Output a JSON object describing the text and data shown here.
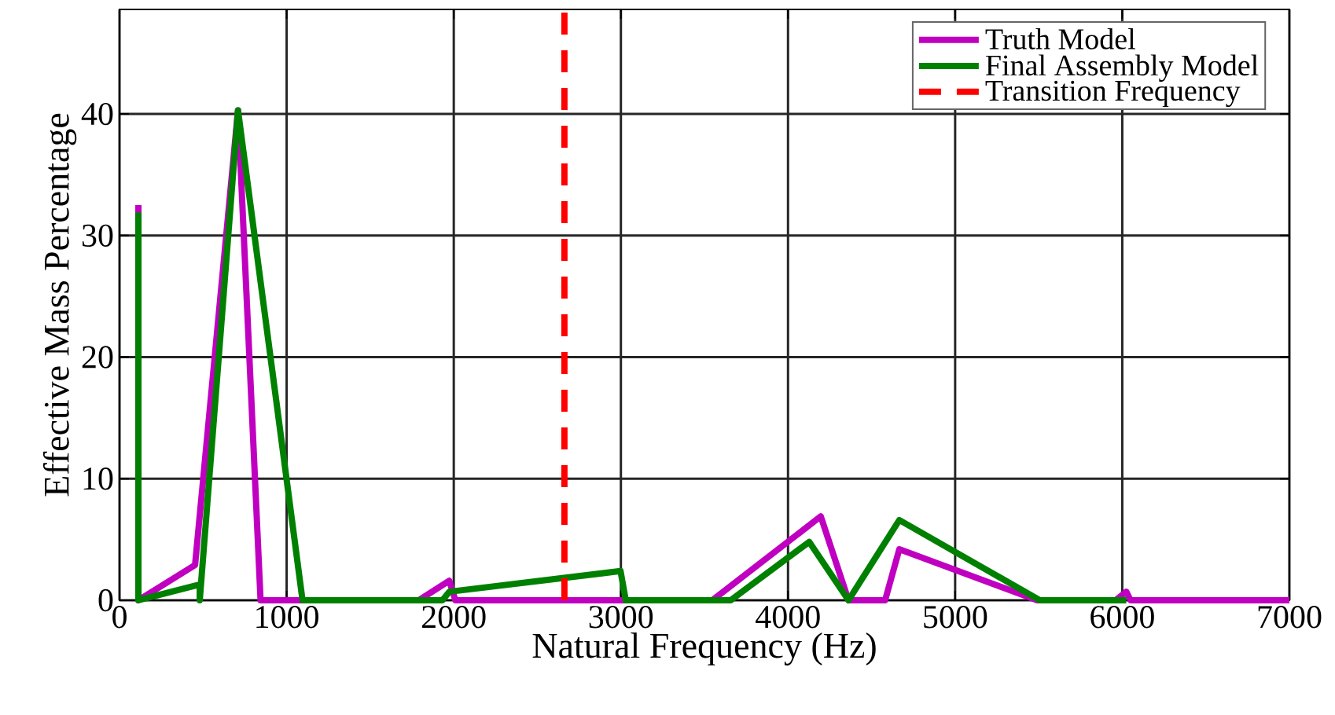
{
  "chart_data": {
    "type": "line",
    "xlabel": "Natural Frequency (Hz)",
    "ylabel": "Effective Mass Percentage",
    "xlim": [
      0,
      7000
    ],
    "ylim": [
      0,
      48.6
    ],
    "xticks": [
      0,
      1000,
      2000,
      3000,
      4000,
      5000,
      6000,
      7000
    ],
    "yticks": [
      0,
      10,
      20,
      30,
      40
    ],
    "grid": true,
    "legend": "top right",
    "line_style": "solid",
    "marker": "none",
    "series": [
      {
        "name": "Truth Model",
        "color": "#c000c0",
        "x": [
          113,
          113,
          452,
          709,
          844,
          1791,
          1973,
          2010,
          3547,
          4196,
          4362,
          4581,
          4666,
          5491,
          5961,
          6024,
          6050,
          7000
        ],
        "values": [
          32.5,
          0,
          2.9,
          40.3,
          0,
          0,
          1.6,
          0,
          0,
          6.9,
          0,
          0,
          4.2,
          0,
          0,
          0.7,
          0,
          0
        ]
      },
      {
        "name": "Final Assembly Model",
        "color": "#008000",
        "x": [
          113,
          113,
          480,
          480,
          709,
          1095,
          1932,
          1973,
          2998,
          3029,
          3657,
          4127,
          4362,
          4666,
          5507,
          6024
        ],
        "values": [
          31.9,
          0,
          1.3,
          0,
          40.3,
          0,
          0,
          0.7,
          2.4,
          0,
          0,
          4.8,
          0,
          6.6,
          0,
          0
        ]
      },
      {
        "name": "Transition Frequency",
        "color": "#ff0000",
        "line_style": "dashed",
        "x": [
          2662,
          2662
        ],
        "values": [
          0,
          48.6
        ]
      }
    ]
  }
}
